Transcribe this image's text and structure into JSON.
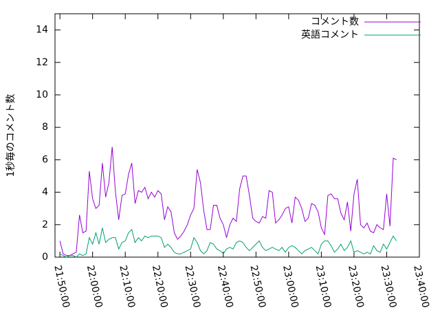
{
  "chart_data": {
    "type": "line",
    "ylabel": "1秒毎のコメント数",
    "x": [
      "21:50:00",
      "21:51:00",
      "21:52:00",
      "21:53:00",
      "21:54:00",
      "21:55:00",
      "21:56:00",
      "21:57:00",
      "21:58:00",
      "21:59:00",
      "22:00:00",
      "22:01:00",
      "22:02:00",
      "22:03:00",
      "22:04:00",
      "22:05:00",
      "22:06:00",
      "22:07:00",
      "22:08:00",
      "22:09:00",
      "22:10:00",
      "22:11:00",
      "22:12:00",
      "22:13:00",
      "22:14:00",
      "22:15:00",
      "22:16:00",
      "22:17:00",
      "22:18:00",
      "22:19:00",
      "22:20:00",
      "22:21:00",
      "22:22:00",
      "22:23:00",
      "22:24:00",
      "22:25:00",
      "22:26:00",
      "22:27:00",
      "22:28:00",
      "22:29:00",
      "22:30:00",
      "22:31:00",
      "22:32:00",
      "22:33:00",
      "22:34:00",
      "22:35:00",
      "22:36:00",
      "22:37:00",
      "22:38:00",
      "22:39:00",
      "22:40:00",
      "22:41:00",
      "22:42:00",
      "22:43:00",
      "22:44:00",
      "22:45:00",
      "22:46:00",
      "22:47:00",
      "22:48:00",
      "22:49:00",
      "22:50:00",
      "22:51:00",
      "22:52:00",
      "22:53:00",
      "22:54:00",
      "22:55:00",
      "22:56:00",
      "22:57:00",
      "22:58:00",
      "22:59:00",
      "23:00:00",
      "23:01:00",
      "23:02:00",
      "23:03:00",
      "23:04:00",
      "23:05:00",
      "23:06:00",
      "23:07:00",
      "23:08:00",
      "23:09:00",
      "23:10:00",
      "23:11:00",
      "23:12:00",
      "23:13:00",
      "23:14:00",
      "23:15:00",
      "23:16:00",
      "23:17:00",
      "23:18:00",
      "23:19:00",
      "23:20:00",
      "23:21:00",
      "23:22:00",
      "23:23:00",
      "23:24:00",
      "23:25:00",
      "23:26:00",
      "23:27:00",
      "23:28:00",
      "23:29:00",
      "23:30:00",
      "23:31:00",
      "23:32:00",
      "23:33:00"
    ],
    "series": [
      {
        "name": "コメント数",
        "color": "#9400d3",
        "values": [
          1.0,
          0.2,
          0.1,
          0.1,
          0.2,
          0.3,
          2.6,
          1.5,
          1.6,
          5.3,
          3.6,
          3.0,
          3.2,
          5.8,
          3.7,
          4.6,
          6.8,
          4.0,
          2.3,
          3.8,
          3.9,
          5.1,
          5.8,
          3.3,
          4.1,
          4.0,
          4.3,
          3.6,
          4.0,
          3.7,
          4.1,
          3.9,
          2.3,
          3.1,
          2.8,
          1.5,
          1.1,
          1.3,
          1.6,
          2.0,
          2.6,
          3.0,
          5.4,
          4.6,
          2.9,
          1.7,
          1.7,
          3.2,
          3.2,
          2.4,
          2.0,
          1.2,
          2.0,
          2.4,
          2.2,
          4.2,
          5.0,
          5.0,
          3.8,
          2.4,
          2.2,
          2.1,
          2.5,
          2.4,
          4.1,
          4.0,
          2.1,
          2.3,
          2.6,
          3.0,
          3.1,
          2.1,
          3.7,
          3.5,
          3.0,
          2.2,
          2.4,
          3.3,
          3.2,
          2.8,
          1.8,
          1.4,
          3.8,
          3.9,
          3.6,
          3.6,
          2.7,
          2.3,
          3.4,
          1.6,
          3.9,
          4.8,
          2.0,
          1.8,
          2.1,
          1.6,
          1.5,
          2.0,
          1.8,
          1.7,
          3.9,
          1.9,
          6.1,
          6.0
        ]
      },
      {
        "name": "英語コメント",
        "color": "#009e73",
        "values": [
          0.2,
          0.1,
          0.0,
          0.1,
          0.1,
          0.0,
          0.2,
          0.1,
          0.2,
          1.2,
          0.8,
          1.5,
          0.8,
          1.8,
          0.9,
          1.1,
          1.2,
          1.2,
          0.5,
          0.9,
          1.0,
          1.5,
          1.7,
          0.9,
          1.2,
          1.0,
          1.3,
          1.2,
          1.3,
          1.3,
          1.3,
          1.2,
          0.6,
          0.8,
          0.6,
          0.3,
          0.2,
          0.2,
          0.3,
          0.4,
          0.5,
          1.2,
          0.9,
          0.4,
          0.2,
          0.4,
          0.9,
          0.8,
          0.5,
          0.4,
          0.2,
          0.5,
          0.6,
          0.5,
          0.9,
          1.0,
          0.9,
          0.6,
          0.4,
          0.6,
          0.8,
          1.0,
          0.6,
          0.4,
          0.5,
          0.6,
          0.5,
          0.4,
          0.6,
          0.3,
          0.6,
          0.7,
          0.6,
          0.4,
          0.2,
          0.4,
          0.5,
          0.6,
          0.4,
          0.2,
          0.8,
          1.0,
          1.0,
          0.7,
          0.3,
          0.5,
          0.8,
          0.4,
          0.6,
          1.0,
          0.3,
          0.4,
          0.3,
          0.2,
          0.3,
          0.2,
          0.7,
          0.4,
          0.3,
          0.8,
          0.5,
          0.9,
          1.3,
          1.0
        ]
      }
    ],
    "xlim": [
      "21:48:30",
      "23:40:00"
    ],
    "xticks": [
      "21:50:00",
      "22:00:00",
      "22:10:00",
      "22:20:00",
      "22:30:00",
      "22:40:00",
      "22:50:00",
      "23:00:00",
      "23:10:00",
      "23:20:00",
      "23:30:00",
      "23:40:00"
    ],
    "ylim": [
      0,
      15
    ],
    "yticks": [
      0,
      2,
      4,
      6,
      8,
      10,
      12,
      14
    ],
    "grid": false,
    "legend": "top-right"
  }
}
